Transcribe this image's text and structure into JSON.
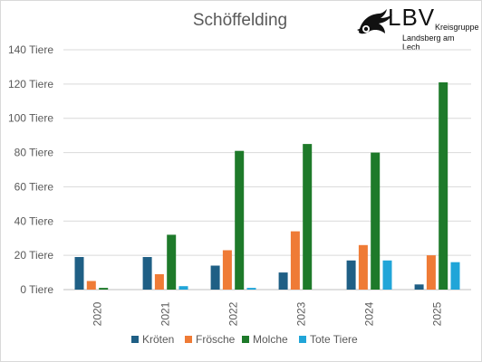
{
  "brand": {
    "logo_text": "LBV",
    "line1": "Kreisgruppe",
    "line2": "Landsberg am Lech"
  },
  "chart_data": {
    "type": "bar",
    "title": "Schöffelding",
    "categories": [
      "2020",
      "2021",
      "2022",
      "2023",
      "2024",
      "2025"
    ],
    "series": [
      {
        "name": "Kröten",
        "color": "#1f5f85",
        "values": [
          19,
          19,
          14,
          10,
          17,
          3
        ]
      },
      {
        "name": "Frösche",
        "color": "#ef7b36",
        "values": [
          5,
          9,
          23,
          34,
          26,
          20
        ]
      },
      {
        "name": "Molche",
        "color": "#1e7a2a",
        "values": [
          1,
          32,
          81,
          85,
          80,
          121
        ]
      },
      {
        "name": "Tote Tiere",
        "color": "#20a5d8",
        "values": [
          0,
          2,
          1,
          0,
          17,
          16
        ]
      }
    ],
    "ylim": [
      0,
      140
    ],
    "ytick_labels": [
      "0 Tiere",
      "20 Tiere",
      "40 Tiere",
      "60 Tiere",
      "80 Tiere",
      "100 Tiere",
      "120 Tiere",
      "140 Tiere"
    ],
    "grid": true,
    "legend_position": "bottom"
  }
}
